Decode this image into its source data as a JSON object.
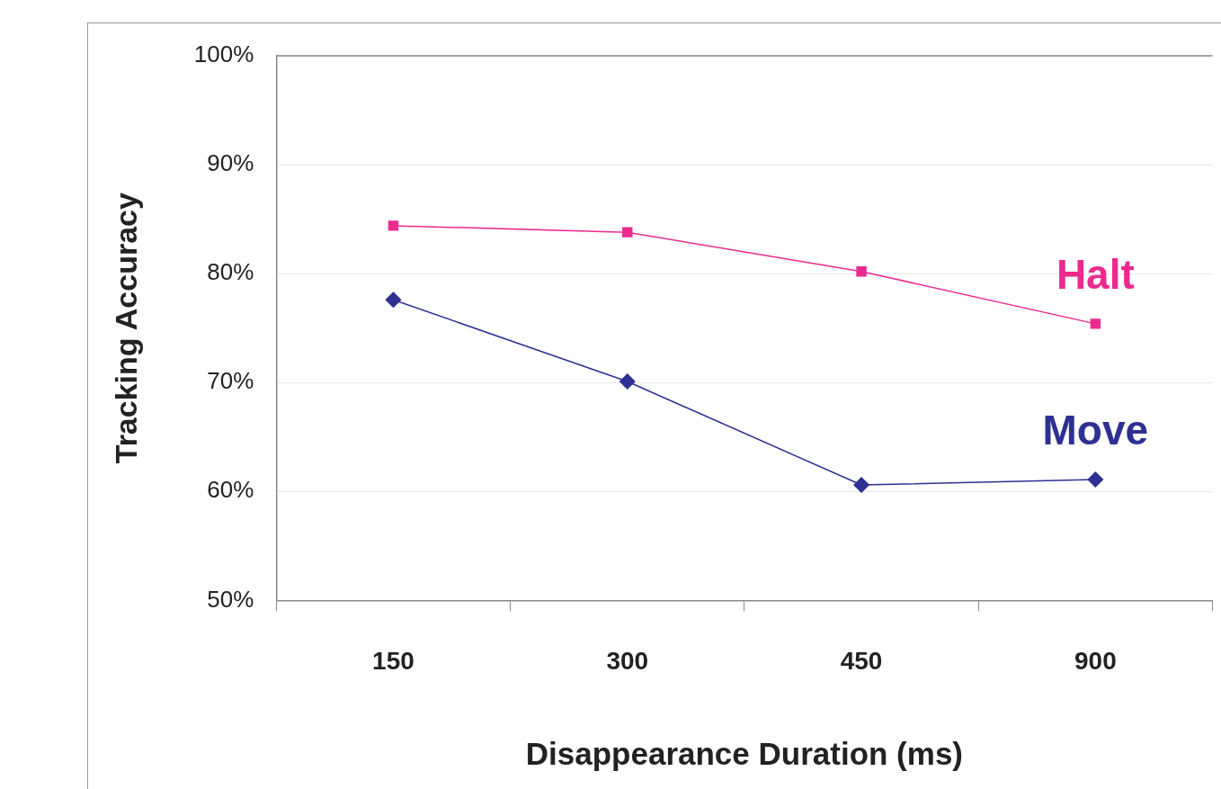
{
  "chart_data": {
    "type": "line",
    "xlabel": "Disappearance Duration (ms)",
    "ylabel": "Tracking Accuracy",
    "categories": [
      "150",
      "300",
      "450",
      "900"
    ],
    "series": [
      {
        "name": "Halt",
        "color": "#ec2a8e",
        "marker": "square",
        "values": [
          84.4,
          83.8,
          80.2,
          75.4
        ]
      },
      {
        "name": "Move",
        "color": "#2e3192",
        "marker": "diamond",
        "values": [
          77.6,
          70.1,
          60.6,
          61.1
        ]
      }
    ],
    "ylim": [
      50,
      100
    ],
    "yticks": [
      {
        "value": 50,
        "label": "50%"
      },
      {
        "value": 60,
        "label": "60%"
      },
      {
        "value": 70,
        "label": "70%"
      },
      {
        "value": 80,
        "label": "80%"
      },
      {
        "value": 90,
        "label": "90%"
      },
      {
        "value": 100,
        "label": "100%"
      }
    ],
    "grid": "y",
    "legend": false,
    "line_style": "solid"
  }
}
